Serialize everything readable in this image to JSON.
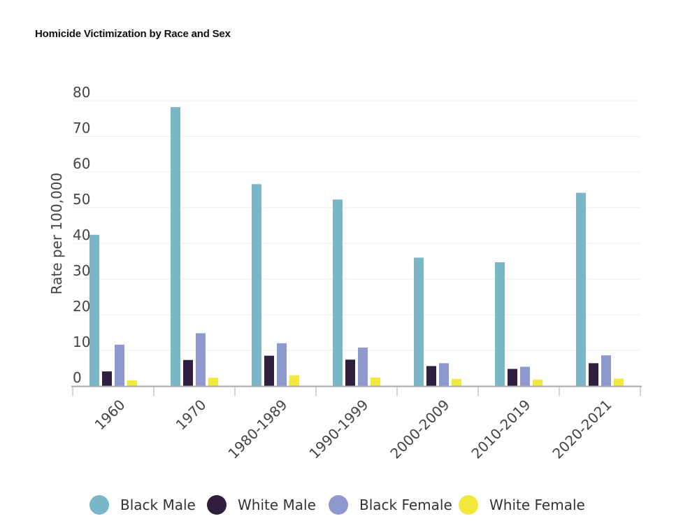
{
  "chart_data": {
    "type": "bar",
    "title": "Homicide Victimization by Race and Sex",
    "ylabel": "Rate per 100,000",
    "xlabel": "",
    "ylim": [
      0,
      80
    ],
    "yticks": [
      0,
      10,
      20,
      30,
      40,
      50,
      60,
      70,
      80
    ],
    "grid": true,
    "legend_position": "bottom",
    "categories": [
      "1960",
      "1970",
      "1980-1989",
      "1990-1999",
      "2000-2009",
      "2010-2019",
      "2020-2021"
    ],
    "series": [
      {
        "name": "Black Male",
        "color": "#7ab8c9",
        "values": [
          42.4,
          78.2,
          56.6,
          52.3,
          36.0,
          34.7,
          54.2
        ]
      },
      {
        "name": "White Male",
        "color": "#2f1e3e",
        "values": [
          4.1,
          7.3,
          8.5,
          7.4,
          5.6,
          4.8,
          6.4
        ]
      },
      {
        "name": "Black Female",
        "color": "#8f98cf",
        "values": [
          11.6,
          14.8,
          12.0,
          10.8,
          6.4,
          5.4,
          8.6
        ]
      },
      {
        "name": "White Female",
        "color": "#f2e93c",
        "values": [
          1.6,
          2.3,
          3.0,
          2.4,
          2.0,
          1.8,
          2.1
        ]
      }
    ]
  }
}
